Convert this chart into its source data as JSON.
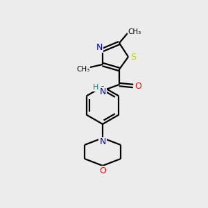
{
  "bg_color": "#ececec",
  "bond_color": "#000000",
  "atom_colors": {
    "N": "#0000cc",
    "O": "#ff0000",
    "S": "#cccc00",
    "H": "#008080",
    "C": "#000000"
  },
  "figsize": [
    3.0,
    3.0
  ],
  "dpi": 100
}
